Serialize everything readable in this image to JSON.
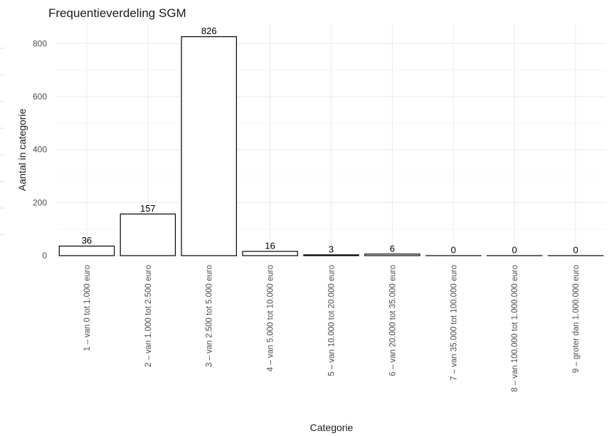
{
  "chart_data": {
    "type": "bar",
    "title": "Frequentieverdeling SGM",
    "xlabel": "Categorie",
    "ylabel": "Aantal in categorie",
    "categories": [
      "1 – van 0 tot 1.000 euro",
      "2 – van 1.000 tot 2.500 euro",
      "3 – van 2.500 tot 5.000 euro",
      "4 – van 5.000 tot 10.000 euro",
      "5 – van 10.000 tot 20.000 euro",
      "6 – van 20.000 tot 35.000 euro",
      "7 – van 35.000 tot 100.000 euro",
      "8 – van 100.000 tot 1.000.000 euro",
      "9 – groter dan 1.000.000 euro"
    ],
    "values": [
      36,
      157,
      826,
      16,
      3,
      6,
      0,
      0,
      0
    ],
    "data_labels": [
      "36",
      "157",
      "826",
      "16",
      "3",
      "6",
      "0",
      "0",
      "0"
    ],
    "yticks": [
      0,
      200,
      400,
      600,
      800
    ],
    "ytick_labels": [
      "0",
      "200",
      "400",
      "600",
      "800"
    ],
    "ylim": [
      0,
      860
    ],
    "grid": true,
    "legend": "none",
    "bar_fill": "#ffffff",
    "bar_stroke": "#000000",
    "grid_color": "#ebebeb",
    "background": "#ffffff"
  }
}
